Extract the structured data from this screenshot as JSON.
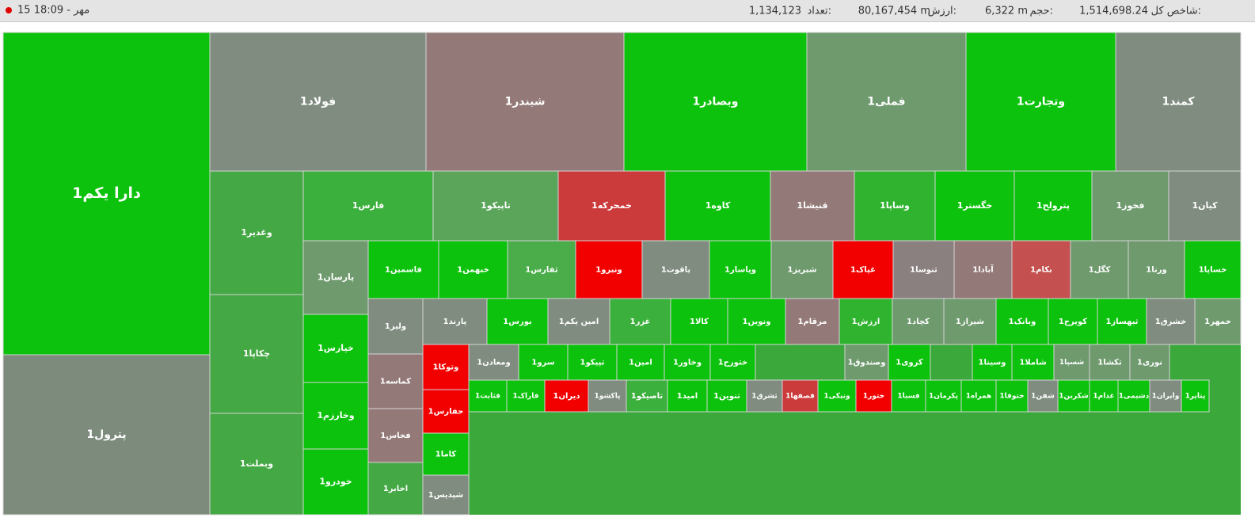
{
  "header": {
    "index_label": "شاخص کل:",
    "index_value": "1,514,698.24",
    "volume_label": "حجم:",
    "volume_value": "6,322 m",
    "value_label": "ارزش:",
    "value_value": "80,167,454 m",
    "count_label": "تعداد:",
    "count_value": "1,134,123",
    "time": "15 مهر - 18:09"
  },
  "tiles": [
    {
      "label": "دارا یکم1",
      "color": "#0cc20c"
    },
    {
      "label": "پترول1",
      "color": "#7c8b7c"
    },
    {
      "label": "فولاد1",
      "color": "#7f8c7f"
    },
    {
      "label": "شبندر1",
      "color": "#937a78"
    },
    {
      "label": "وبصادر1",
      "color": "#0cc20c"
    },
    {
      "label": "فملی1",
      "color": "#6e9a6e"
    },
    {
      "label": "وتجارت1",
      "color": "#0cc20c"
    },
    {
      "label": "کمند1",
      "color": "#7f8c7f"
    },
    {
      "label": "وغدیر1",
      "color": "#44a844"
    },
    {
      "label": "فارس1",
      "color": "#3cb03c"
    },
    {
      "label": "تاپیکو1",
      "color": "#5aa55a"
    },
    {
      "label": "خمحرکه1",
      "color": "#cc3b3b"
    },
    {
      "label": "کاوه1",
      "color": "#0cc20c"
    },
    {
      "label": "قنیشا1",
      "color": "#937a78"
    },
    {
      "label": "وساپا1",
      "color": "#30b430"
    },
    {
      "label": "خگستر1",
      "color": "#0cc20c"
    },
    {
      "label": "پترولح1",
      "color": "#0cc20c"
    },
    {
      "label": "فخوز1",
      "color": "#6e9a6e"
    },
    {
      "label": "کیان1",
      "color": "#7f8c7f"
    },
    {
      "label": "چکاپا1",
      "color": "#44a844"
    },
    {
      "label": "وبملت1",
      "color": "#44a844"
    },
    {
      "label": "پارسان1",
      "color": "#6e9a6e"
    },
    {
      "label": "خپارس1",
      "color": "#0cc20c"
    },
    {
      "label": "وخارزم1",
      "color": "#0cc20c"
    },
    {
      "label": "خودرو1",
      "color": "#0cc20c"
    },
    {
      "label": "فاسمین1",
      "color": "#0cc20c"
    },
    {
      "label": "خبهمن1",
      "color": "#0cc20c"
    },
    {
      "label": "ثفارس1",
      "color": "#4aad4a"
    },
    {
      "label": "ونیرو1",
      "color": "#f20000"
    },
    {
      "label": "یاقوت1",
      "color": "#7f8c7f"
    },
    {
      "label": "وپاسار1",
      "color": "#0cc20c"
    },
    {
      "label": "شبریز1",
      "color": "#6e9a6e"
    },
    {
      "label": "غپاک1",
      "color": "#f20000"
    },
    {
      "label": "ثنوسا1",
      "color": "#8a8080"
    },
    {
      "label": "آبادا1",
      "color": "#937a78"
    },
    {
      "label": "بکام1",
      "color": "#c45050"
    },
    {
      "label": "کگل1",
      "color": "#6e9a6e"
    },
    {
      "label": "ورنا1",
      "color": "#6e9a6e"
    },
    {
      "label": "خساپا1",
      "color": "#0cc20c"
    },
    {
      "label": "ولیز1",
      "color": "#7f8c7f"
    },
    {
      "label": "پارند1",
      "color": "#7f8c7f"
    },
    {
      "label": "بورس1",
      "color": "#0cc20c"
    },
    {
      "label": "امین یکم1",
      "color": "#7f8c7f"
    },
    {
      "label": "غزر1",
      "color": "#3cb03c"
    },
    {
      "label": "کالا1",
      "color": "#0cc20c"
    },
    {
      "label": "ونوین1",
      "color": "#0cc20c"
    },
    {
      "label": "مرقام1",
      "color": "#937a78"
    },
    {
      "label": "ارزش1",
      "color": "#30b430"
    },
    {
      "label": "کچاد1",
      "color": "#6e9a6e"
    },
    {
      "label": "شیراز1",
      "color": "#6e9a6e"
    },
    {
      "label": "وبانک1",
      "color": "#0cc20c"
    },
    {
      "label": "کویرح1",
      "color": "#0cc20c"
    },
    {
      "label": "ثبهساز1",
      "color": "#0cc20c"
    },
    {
      "label": "خشرق1",
      "color": "#7f8c7f"
    },
    {
      "label": "خمهر1",
      "color": "#6e9a6e"
    },
    {
      "label": "کماسه1",
      "color": "#937a78"
    },
    {
      "label": "فخاس1",
      "color": "#937a78"
    },
    {
      "label": "اخابر1",
      "color": "#44a844"
    },
    {
      "label": "وتوکا1",
      "color": "#f20000"
    },
    {
      "label": "حفارس1",
      "color": "#f20000"
    },
    {
      "label": "کاما1",
      "color": "#0cc20c"
    },
    {
      "label": "شپدیس1",
      "color": "#7f8c7f"
    },
    {
      "label": "ومعادن1",
      "color": "#7f8c7f"
    },
    {
      "label": "سرو1",
      "color": "#0cc20c"
    },
    {
      "label": "تپیکو1",
      "color": "#0cc20c"
    },
    {
      "label": "امین1",
      "color": "#0cc20c"
    },
    {
      "label": "وخاور1",
      "color": "#0cc20c"
    },
    {
      "label": "ختورح1",
      "color": "#0cc20c"
    },
    {
      "label": "قثابت1",
      "color": "#0cc20c"
    },
    {
      "label": "فاراک1",
      "color": "#0cc20c"
    },
    {
      "label": "دیران1",
      "color": "#f20000"
    },
    {
      "label": "پاکشو1",
      "color": "#7f8c7f"
    },
    {
      "label": "تاصیکو1",
      "color": "#3cb03c"
    },
    {
      "label": "امید1",
      "color": "#0cc20c"
    },
    {
      "label": "تنوین1",
      "color": "#0cc20c"
    },
    {
      "label": "ثشرق1",
      "color": "#7f8c7f"
    },
    {
      "label": "قصفها1",
      "color": "#cc3b3b"
    },
    {
      "label": "ونیکی1",
      "color": "#0cc20c"
    },
    {
      "label": "ختور1",
      "color": "#f20000"
    },
    {
      "label": "فسبا1",
      "color": "#0cc20c"
    },
    {
      "label": "پکرمان1",
      "color": "#0cc20c"
    },
    {
      "label": "همراه1",
      "color": "#0cc20c"
    },
    {
      "label": "ختوقا1",
      "color": "#0cc20c"
    },
    {
      "label": "شفن1",
      "color": "#7f8c7f"
    },
    {
      "label": "شکربن1",
      "color": "#0cc20c"
    },
    {
      "label": "غدام1",
      "color": "#0cc20c"
    },
    {
      "label": "دشیمی1",
      "color": "#0cc20c"
    },
    {
      "label": "وایران1",
      "color": "#7f8c7f"
    },
    {
      "label": "پتایر1",
      "color": "#0cc20c"
    },
    {
      "label": "وصندوق1",
      "color": "#6e9a6e"
    },
    {
      "label": "کروی1",
      "color": "#0cc20c"
    },
    {
      "label": "وسینا1",
      "color": "#0cc20c"
    },
    {
      "label": "شاملا1",
      "color": "#0cc20c"
    },
    {
      "label": "شسپا1",
      "color": "#6e9a6e"
    },
    {
      "label": "تکشا1",
      "color": "#6e9a6e"
    },
    {
      "label": "نوری1",
      "color": "#6e9a6e"
    }
  ]
}
